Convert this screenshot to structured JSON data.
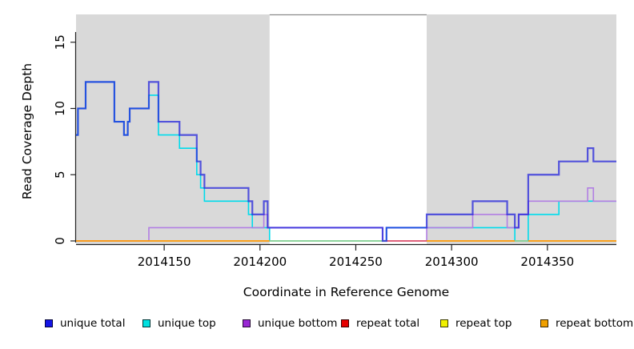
{
  "figure": {
    "xlabel": "Coordinate in Reference Genome",
    "ylabel": "Read Coverage Depth"
  },
  "chart_data": {
    "type": "line",
    "subtype": "step-after-coverage-plot",
    "title": "",
    "xlabel": "Coordinate in Reference Genome",
    "ylabel": "Read Coverage Depth",
    "x_axis": {
      "range": [
        2014104,
        2014386
      ],
      "ticks": [
        2014150,
        2014200,
        2014250,
        2014300,
        2014350
      ],
      "tick_labels": [
        "2014150",
        "2014200",
        "2014250",
        "2014300",
        "2014350"
      ]
    },
    "y_axis": {
      "range": [
        0,
        17
      ],
      "ticks": [
        0,
        5,
        10,
        15
      ],
      "tick_labels": [
        "0",
        "5",
        "10",
        "15"
      ]
    },
    "grid": false,
    "plot_background": "#D9D9D9",
    "white_band": {
      "from": 2014205,
      "to": 2014287,
      "fill": "#FFFFFF",
      "top_border_color": "#8A8A8A",
      "note": "unshaded region of reference genome"
    },
    "series": [
      {
        "name": "unique total",
        "color": "#2323DC",
        "opacity": 0.74,
        "line_width": 2.2,
        "step_points": [
          [
            2014104,
            8
          ],
          [
            2014105,
            10
          ],
          [
            2014109,
            12
          ],
          [
            2014124,
            9
          ],
          [
            2014129,
            8
          ],
          [
            2014131,
            9
          ],
          [
            2014132,
            10
          ],
          [
            2014142,
            12
          ],
          [
            2014147,
            9
          ],
          [
            2014158,
            8
          ],
          [
            2014167,
            6
          ],
          [
            2014169,
            5
          ],
          [
            2014171,
            4
          ],
          [
            2014194,
            3
          ],
          [
            2014196,
            2
          ],
          [
            2014202,
            3
          ],
          [
            2014204,
            1
          ],
          [
            2014264,
            0
          ],
          [
            2014266,
            1
          ],
          [
            2014287,
            2
          ],
          [
            2014311,
            3
          ],
          [
            2014329,
            2
          ],
          [
            2014333,
            1
          ],
          [
            2014335,
            2
          ],
          [
            2014340,
            5
          ],
          [
            2014356,
            6
          ],
          [
            2014371,
            7
          ],
          [
            2014374,
            6
          ]
        ],
        "end_x": 2014386
      },
      {
        "name": "unique top",
        "color": "#00DCEC",
        "opacity": 1,
        "line_width": 1.6,
        "step_points": [
          [
            2014104,
            8
          ],
          [
            2014105,
            10
          ],
          [
            2014109,
            12
          ],
          [
            2014124,
            9
          ],
          [
            2014129,
            8
          ],
          [
            2014131,
            9
          ],
          [
            2014132,
            10
          ],
          [
            2014142,
            11
          ],
          [
            2014147,
            8
          ],
          [
            2014158,
            7
          ],
          [
            2014167,
            5
          ],
          [
            2014169,
            4
          ],
          [
            2014171,
            3
          ],
          [
            2014194,
            2
          ],
          [
            2014196,
            1
          ],
          [
            2014205,
            0
          ],
          [
            2014266,
            1
          ],
          [
            2014333,
            0
          ],
          [
            2014340,
            2
          ],
          [
            2014356,
            3
          ]
        ],
        "end_x": 2014386
      },
      {
        "name": "unique bottom",
        "color": "#B27FE3",
        "opacity": 1,
        "line_width": 1.6,
        "step_points": [
          [
            2014104,
            0
          ],
          [
            2014142,
            1
          ],
          [
            2014202,
            2
          ],
          [
            2014204,
            1
          ],
          [
            2014264,
            0
          ],
          [
            2014287,
            1
          ],
          [
            2014311,
            2
          ],
          [
            2014329,
            1
          ],
          [
            2014335,
            2
          ],
          [
            2014340,
            3
          ],
          [
            2014371,
            4
          ],
          [
            2014374,
            3
          ]
        ],
        "end_x": 2014386
      },
      {
        "name": "repeat total",
        "color": "#E60000",
        "opacity": 1,
        "line_width": 1.5,
        "step_points": [
          [
            2014104,
            0
          ]
        ],
        "end_x": 2014386
      },
      {
        "name": "repeat top",
        "color": "#F0F000",
        "opacity": 1,
        "line_width": 1.5,
        "step_points": [
          [
            2014104,
            0
          ]
        ],
        "end_x": 2014386
      },
      {
        "name": "repeat bottom",
        "color": "#F0A000",
        "opacity": 1,
        "line_width": 1.5,
        "step_points": [
          [
            2014104,
            0
          ]
        ],
        "end_x": 2014386
      }
    ],
    "zero_line_segments": [
      {
        "from": 2014104,
        "to": 2014205,
        "color": "#FF9800"
      },
      {
        "from": 2014205,
        "to": 2014266,
        "color": "#8FCF8F"
      },
      {
        "from": 2014266,
        "to": 2014287,
        "color": "#E0556A"
      },
      {
        "from": 2014287,
        "to": 2014333,
        "color": "#FF9800"
      },
      {
        "from": 2014333,
        "to": 2014340,
        "color": "#8FCF8F"
      },
      {
        "from": 2014340,
        "to": 2014386,
        "color": "#FF9800"
      }
    ],
    "legend_position": "bottom"
  },
  "legend": {
    "items": [
      {
        "label": "unique total",
        "swatch_color": "#1414E6"
      },
      {
        "label": "unique top",
        "swatch_color": "#00E0E0"
      },
      {
        "label": "unique bottom",
        "swatch_color": "#9928D4"
      },
      {
        "label": "repeat total",
        "swatch_color": "#E60000"
      },
      {
        "label": "repeat top",
        "swatch_color": "#F0F000"
      },
      {
        "label": "repeat bottom",
        "swatch_color": "#F0A000"
      }
    ]
  }
}
